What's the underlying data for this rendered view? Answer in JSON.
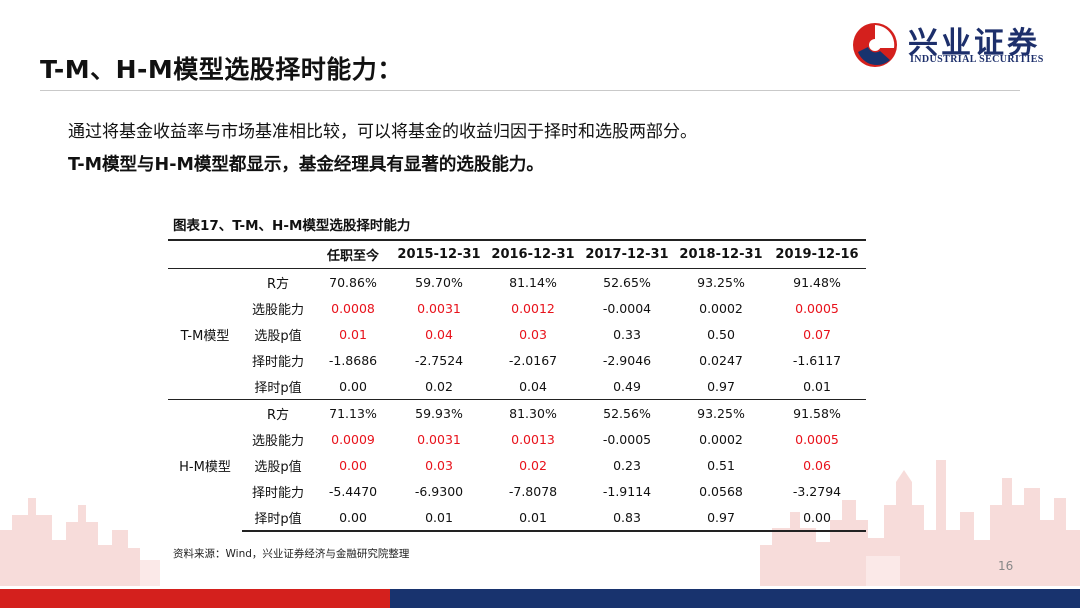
{
  "page_title": "T-M、H-M模型选股择时能力：",
  "logo": {
    "cn": "兴业证券",
    "en": "INDUSTRIAL SECURITIES",
    "icon": "industrial-securities-logo-icon"
  },
  "body_lines": [
    "通过将基金收益率与市场基准相比较，可以将基金的收益归因于择时和选股两部分。",
    "T-M模型与H-M模型都显示，基金经理具有显著的选股能力。"
  ],
  "table": {
    "caption": "图表17、T-M、H-M模型选股择时能力",
    "headers": [
      "",
      "",
      "任职至今",
      "2015-12-31",
      "2016-12-31",
      "2017-12-31",
      "2018-12-31",
      "2019-12-16"
    ],
    "groups": [
      {
        "model": "T-M模型",
        "rows": [
          {
            "metric": "R方",
            "values": [
              "70.86%",
              "59.70%",
              "81.14%",
              "52.65%",
              "93.25%",
              "91.48%"
            ],
            "red": [
              false,
              false,
              false,
              false,
              false,
              false
            ]
          },
          {
            "metric": "选股能力",
            "values": [
              "0.0008",
              "0.0031",
              "0.0012",
              "-0.0004",
              "0.0002",
              "0.0005"
            ],
            "red": [
              true,
              true,
              true,
              false,
              false,
              true
            ]
          },
          {
            "metric": "选股p值",
            "values": [
              "0.01",
              "0.04",
              "0.03",
              "0.33",
              "0.50",
              "0.07"
            ],
            "red": [
              true,
              true,
              true,
              false,
              false,
              true
            ]
          },
          {
            "metric": "择时能力",
            "values": [
              "-1.8686",
              "-2.7524",
              "-2.0167",
              "-2.9046",
              "0.0247",
              "-1.6117"
            ],
            "red": [
              false,
              false,
              false,
              false,
              false,
              false
            ]
          },
          {
            "metric": "择时p值",
            "values": [
              "0.00",
              "0.02",
              "0.04",
              "0.49",
              "0.97",
              "0.01"
            ],
            "red": [
              false,
              false,
              false,
              false,
              false,
              false
            ]
          }
        ]
      },
      {
        "model": "H-M模型",
        "rows": [
          {
            "metric": "R方",
            "values": [
              "71.13%",
              "59.93%",
              "81.30%",
              "52.56%",
              "93.25%",
              "91.58%"
            ],
            "red": [
              false,
              false,
              false,
              false,
              false,
              false
            ]
          },
          {
            "metric": "选股能力",
            "values": [
              "0.0009",
              "0.0031",
              "0.0013",
              "-0.0005",
              "0.0002",
              "0.0005"
            ],
            "red": [
              true,
              true,
              true,
              false,
              false,
              true
            ]
          },
          {
            "metric": "选股p值",
            "values": [
              "0.00",
              "0.03",
              "0.02",
              "0.23",
              "0.51",
              "0.06"
            ],
            "red": [
              true,
              true,
              true,
              false,
              false,
              true
            ]
          },
          {
            "metric": "择时能力",
            "values": [
              "-5.4470",
              "-6.9300",
              "-7.8078",
              "-1.9114",
              "0.0568",
              "-3.2794"
            ],
            "red": [
              false,
              false,
              false,
              false,
              false,
              false
            ]
          },
          {
            "metric": "择时p值",
            "values": [
              "0.00",
              "0.01",
              "0.01",
              "0.83",
              "0.97",
              "0.00"
            ],
            "red": [
              false,
              false,
              false,
              false,
              false,
              false
            ]
          }
        ]
      }
    ]
  },
  "source_note": "资料来源：Wind，兴业证券经济与金融研究院整理",
  "page_number": "16",
  "colors": {
    "brand_navy": "#18336e",
    "brand_red": "#d4201d",
    "highlight_red": "#e8121b",
    "skyline": "#f7dcda"
  }
}
